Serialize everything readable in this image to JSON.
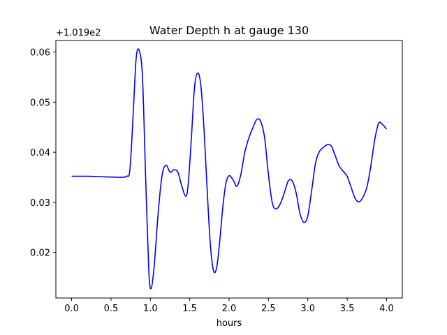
{
  "chart_data": {
    "type": "line",
    "title": "Water Depth h at gauge 130",
    "xlabel": "hours",
    "ylabel": "",
    "y_offset_label": "+1.019e2",
    "xlim": [
      -0.2,
      4.2
    ],
    "ylim": [
      0.0109,
      0.0623
    ],
    "x_ticks": [
      0.0,
      0.5,
      1.0,
      1.5,
      2.0,
      2.5,
      3.0,
      3.5,
      4.0
    ],
    "x_tick_labels": [
      "0.0",
      "0.5",
      "1.0",
      "1.5",
      "2.0",
      "2.5",
      "3.0",
      "3.5",
      "4.0"
    ],
    "y_ticks": [
      0.02,
      0.03,
      0.04,
      0.05,
      0.06
    ],
    "y_tick_labels": [
      "0.02",
      "0.03",
      "0.04",
      "0.05",
      "0.06"
    ],
    "grid": false,
    "series": [
      {
        "color": "#0000ff",
        "x": [
          0.0,
          0.2,
          0.4,
          0.6,
          0.7,
          0.74,
          0.78,
          0.82,
          0.86,
          0.9,
          0.94,
          0.98,
          1.01,
          1.05,
          1.1,
          1.15,
          1.2,
          1.25,
          1.3,
          1.35,
          1.4,
          1.45,
          1.48,
          1.52,
          1.56,
          1.6,
          1.64,
          1.68,
          1.72,
          1.76,
          1.8,
          1.84,
          1.88,
          1.92,
          1.96,
          2.0,
          2.05,
          2.1,
          2.15,
          2.2,
          2.25,
          2.3,
          2.35,
          2.4,
          2.45,
          2.5,
          2.55,
          2.6,
          2.65,
          2.7,
          2.75,
          2.8,
          2.85,
          2.9,
          2.95,
          3.0,
          3.05,
          3.1,
          3.15,
          3.2,
          3.25,
          3.3,
          3.35,
          3.4,
          3.45,
          3.5,
          3.55,
          3.6,
          3.65,
          3.7,
          3.75,
          3.8,
          3.85,
          3.9,
          3.95,
          4.0
        ],
        "y": [
          0.0352,
          0.0352,
          0.0351,
          0.035,
          0.0352,
          0.0365,
          0.047,
          0.0588,
          0.0602,
          0.055,
          0.035,
          0.0165,
          0.0128,
          0.0175,
          0.028,
          0.0355,
          0.0374,
          0.036,
          0.0365,
          0.036,
          0.0332,
          0.0312,
          0.0335,
          0.0425,
          0.0528,
          0.0558,
          0.0535,
          0.045,
          0.033,
          0.022,
          0.0165,
          0.0168,
          0.022,
          0.029,
          0.0338,
          0.0353,
          0.0345,
          0.0332,
          0.0356,
          0.04,
          0.0428,
          0.0448,
          0.0465,
          0.0462,
          0.043,
          0.0355,
          0.0298,
          0.0287,
          0.0297,
          0.0318,
          0.0342,
          0.0343,
          0.032,
          0.0278,
          0.026,
          0.0273,
          0.0325,
          0.038,
          0.0402,
          0.041,
          0.0415,
          0.0412,
          0.0392,
          0.0372,
          0.0362,
          0.0352,
          0.033,
          0.0308,
          0.0301,
          0.031,
          0.033,
          0.0372,
          0.0425,
          0.0458,
          0.0455,
          0.0446
        ]
      }
    ]
  }
}
